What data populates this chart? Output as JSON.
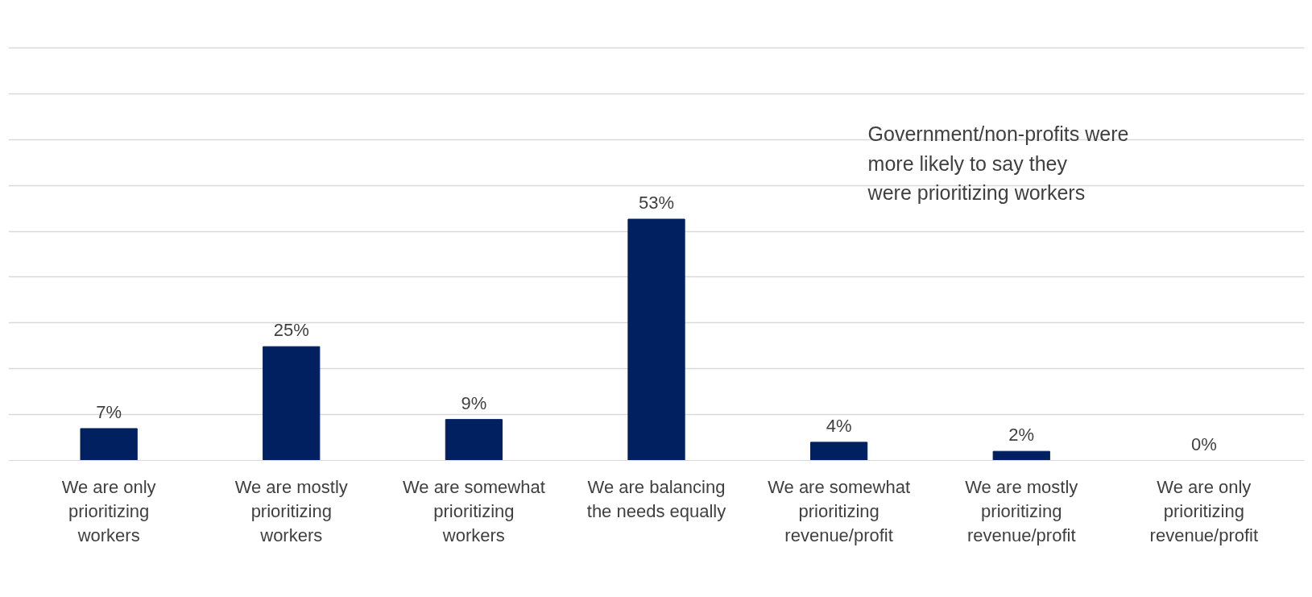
{
  "chart_data": {
    "type": "bar",
    "categories": [
      "We are only prioritizing workers",
      "We are mostly prioritizing workers",
      "We are somewhat prioritizing workers",
      "We are balancing the needs equally",
      "We are somewhat prioritizing revenue/profit",
      "We are mostly prioritizing revenue/profit",
      "We are only prioritizing revenue/profit"
    ],
    "values": [
      7,
      25,
      9,
      53,
      4,
      2,
      0
    ],
    "value_labels": [
      "7%",
      "25%",
      "9%",
      "53%",
      "4%",
      "2%",
      "0%"
    ],
    "color": "#002060",
    "grid": "y",
    "tick_labels": "x",
    "annotations": [
      "Government/non-profits were more likely to say they were prioritizing workers"
    ]
  }
}
